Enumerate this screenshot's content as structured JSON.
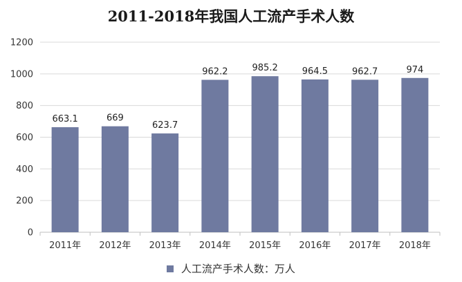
{
  "chart_data": {
    "type": "bar",
    "title": "2011-2018年我国人工流产手术人数",
    "categories": [
      "2011年",
      "2012年",
      "2013年",
      "2014年",
      "2015年",
      "2016年",
      "2017年",
      "2018年"
    ],
    "series": [
      {
        "name": "人工流产手术人数：万人",
        "values": [
          663.1,
          669,
          623.7,
          962.2,
          985.2,
          964.5,
          962.7,
          974
        ],
        "labels": [
          "663.1",
          "669",
          "623.7",
          "962.2",
          "985.2",
          "964.5",
          "962.7",
          "974"
        ],
        "color": "#6f7aa0"
      }
    ],
    "yticks": [
      "0",
      "200",
      "400",
      "600",
      "800",
      "1000",
      "1200"
    ],
    "ylim": [
      0,
      1200
    ],
    "grid": true,
    "legend_position": "bottom"
  }
}
